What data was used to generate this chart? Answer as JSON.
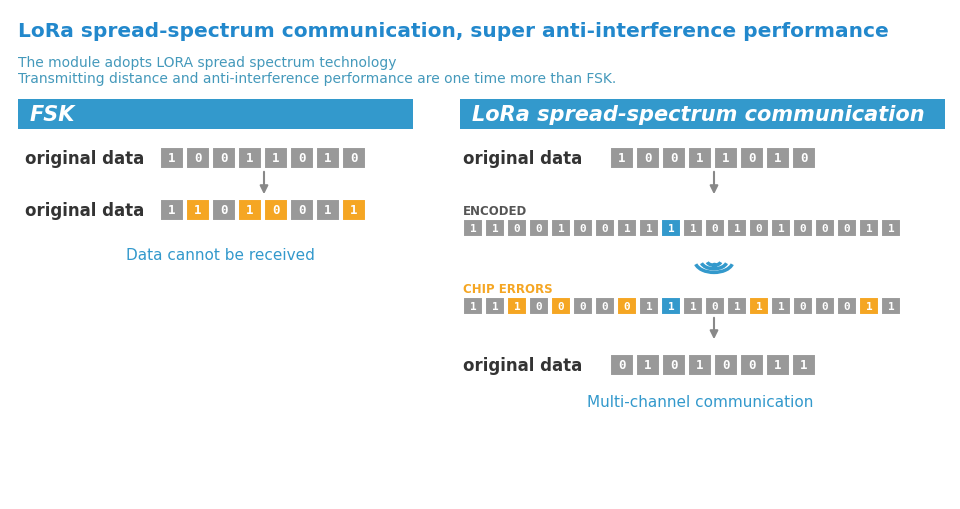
{
  "title": "LoRa spread-spectrum communication, super anti-interference performance",
  "subtitle1": "The module adopts LORA spread spectrum technology",
  "subtitle2": "Transmitting distance and anti-interference performance are one time more than FSK.",
  "title_color": "#2288cc",
  "subtitle_color": "#4499bb",
  "bg_color": "#ffffff",
  "header_blue": "#3399cc",
  "fsk_label": "FSK",
  "lora_label": "LoRa spread-spectrum communication",
  "fsk_orig_label": "original data",
  "fsk_orig_bits": [
    "1",
    "0",
    "0",
    "1",
    "1",
    "0",
    "1",
    "0"
  ],
  "fsk_orig_colors": [
    "gray",
    "gray",
    "gray",
    "gray",
    "gray",
    "gray",
    "gray",
    "gray"
  ],
  "fsk_recv_label": "original data",
  "fsk_recv_bits": [
    "1",
    "1",
    "0",
    "1",
    "0",
    "0",
    "1",
    "1"
  ],
  "fsk_recv_colors": [
    "gray",
    "orange",
    "gray",
    "orange",
    "orange",
    "gray",
    "gray",
    "orange"
  ],
  "fsk_cannot": "Data cannot be received",
  "lora_orig_label": "original data",
  "lora_orig_bits": [
    "1",
    "0",
    "0",
    "1",
    "1",
    "0",
    "1",
    "0"
  ],
  "lora_orig_colors": [
    "gray",
    "gray",
    "gray",
    "gray",
    "gray",
    "gray",
    "gray",
    "gray"
  ],
  "encoded_label": "ENCODED",
  "encoded_bits": [
    "1",
    "1",
    "0",
    "0",
    "1",
    "0",
    "0",
    "1",
    "1",
    "1",
    "1",
    "0",
    "1",
    "0",
    "1",
    "0",
    "0",
    "0",
    "1",
    "1"
  ],
  "encoded_colors": [
    "gray",
    "gray",
    "gray",
    "gray",
    "gray",
    "gray",
    "gray",
    "gray",
    "gray",
    "blue",
    "gray",
    "gray",
    "gray",
    "gray",
    "gray",
    "gray",
    "gray",
    "gray",
    "gray",
    "gray"
  ],
  "chip_label": "CHIP ERRORS",
  "chip_bits": [
    "1",
    "1",
    "1",
    "0",
    "0",
    "0",
    "0",
    "0",
    "1",
    "1",
    "1",
    "0",
    "1",
    "1",
    "1",
    "0",
    "0",
    "0",
    "1",
    "1"
  ],
  "chip_colors": [
    "gray",
    "gray",
    "orange",
    "gray",
    "orange",
    "gray",
    "gray",
    "orange",
    "gray",
    "blue",
    "gray",
    "gray",
    "gray",
    "orange",
    "gray",
    "gray",
    "gray",
    "gray",
    "orange",
    "gray"
  ],
  "lora_out_label": "original data",
  "lora_out_bits": [
    "0",
    "1",
    "0",
    "1",
    "0",
    "0",
    "1",
    "1"
  ],
  "lora_out_colors": [
    "gray",
    "gray",
    "gray",
    "gray",
    "gray",
    "gray",
    "gray",
    "gray"
  ],
  "multi_channel": "Multi-channel communication",
  "orange": "#F5A623",
  "blue": "#3399cc",
  "arrow_color": "#888888"
}
